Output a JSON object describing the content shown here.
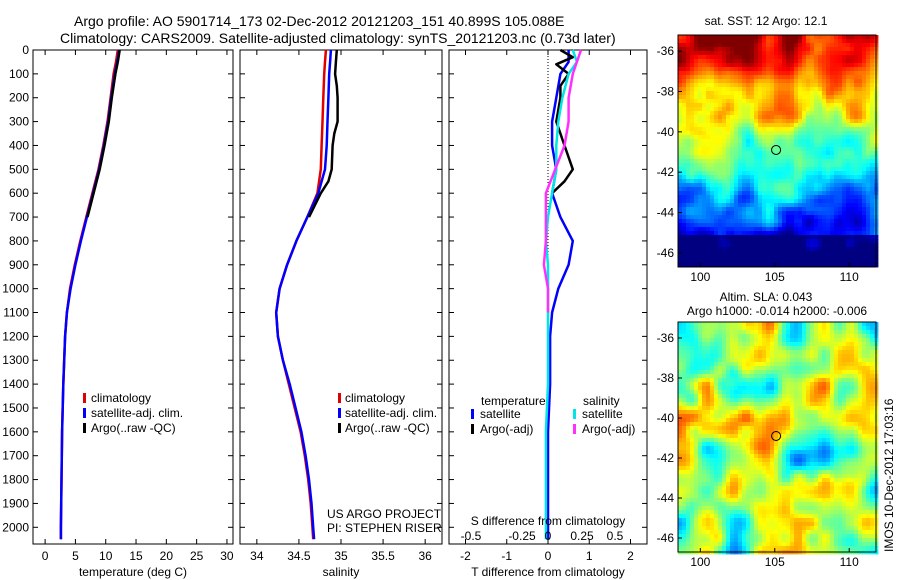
{
  "header": {
    "line1": "Argo profile: AO 5901714_173 02-Dec-2012 20121203_151 40.899S 105.088E",
    "line2": "Climatology: CARS2009. Satellite-adjusted climatology: synTS_20121203.nc (0.73d later)"
  },
  "colors": {
    "climatology": "#e00000",
    "satellite": "#0000ff",
    "argo": "#000000",
    "sat_salinity": "#00e5e5",
    "argo_salinity_adj": "#ff30ff"
  },
  "chart_data": [
    {
      "type": "line",
      "id": "temperature",
      "xlabel": "temperature (deg C)",
      "ylabel": "",
      "xlim": [
        -2,
        31
      ],
      "ylim": [
        2070,
        0
      ],
      "xticks": [
        "0",
        "5",
        "10",
        "15",
        "20",
        "25",
        "30"
      ],
      "yticks": [
        "0",
        "100",
        "200",
        "300",
        "400",
        "500",
        "600",
        "700",
        "800",
        "900",
        "1000",
        "1100",
        "1200",
        "1300",
        "1400",
        "1500",
        "1600",
        "1700",
        "1800",
        "1900",
        "2000"
      ],
      "legend": [
        "climatology",
        "satellite-adj. clim.",
        "Argo(..raw -QC)"
      ],
      "series": [
        {
          "name": "climatology",
          "depth": [
            0,
            50,
            100,
            200,
            300,
            400,
            500,
            600,
            700,
            800,
            900,
            1000,
            1100,
            1200,
            1400,
            1600,
            1800,
            2000,
            2050
          ],
          "values": [
            12.0,
            11.7,
            11.3,
            10.8,
            10.3,
            9.6,
            8.8,
            7.8,
            6.8,
            5.8,
            4.9,
            4.1,
            3.6,
            3.3,
            3.0,
            2.8,
            2.7,
            2.6,
            2.6
          ]
        },
        {
          "name": "satellite-adj. clim.",
          "depth": [
            0,
            50,
            100,
            200,
            300,
            400,
            500,
            600,
            700,
            800,
            900,
            1000,
            1100,
            1200,
            1400,
            1600,
            1800,
            2000,
            2050
          ],
          "values": [
            12.2,
            11.9,
            11.5,
            10.9,
            10.4,
            9.7,
            8.9,
            7.9,
            6.9,
            5.9,
            5.0,
            4.2,
            3.6,
            3.3,
            3.0,
            2.8,
            2.7,
            2.6,
            2.6
          ]
        },
        {
          "name": "Argo(..raw -QC)",
          "depth": [
            0,
            50,
            100,
            200,
            300,
            400,
            500,
            600,
            700
          ],
          "values": [
            12.3,
            12.0,
            11.6,
            11.0,
            10.5,
            9.8,
            9.0,
            8.0,
            7.0
          ]
        }
      ]
    },
    {
      "type": "line",
      "id": "salinity",
      "xlabel": "salinity",
      "xlim": [
        33.8,
        36.2
      ],
      "ylim": [
        2070,
        0
      ],
      "xticks": [
        "34",
        "34.5",
        "35",
        "35.5",
        "36"
      ],
      "legend": [
        "climatology",
        "satellite-adj. clim.",
        "Argo(..raw -QC)"
      ],
      "annotation": [
        "US ARGO PROJECT",
        "PI: STEPHEN RISER"
      ],
      "series": [
        {
          "name": "climatology",
          "depth": [
            0,
            50,
            100,
            200,
            300,
            400,
            500,
            600,
            700,
            800,
            900,
            1000,
            1100,
            1200,
            1300,
            1400,
            1500,
            1600,
            1700,
            1800,
            1900,
            2000,
            2050
          ],
          "values": [
            34.82,
            34.81,
            34.8,
            34.79,
            34.78,
            34.77,
            34.76,
            34.72,
            34.6,
            34.47,
            34.36,
            34.27,
            34.23,
            34.25,
            34.31,
            34.38,
            34.45,
            34.52,
            34.57,
            34.61,
            34.64,
            34.66,
            34.67
          ]
        },
        {
          "name": "satellite-adj. clim.",
          "depth": [
            0,
            50,
            100,
            200,
            300,
            400,
            500,
            600,
            700,
            800,
            900,
            1000,
            1100,
            1200,
            1300,
            1400,
            1500,
            1600,
            1700,
            1800,
            1900,
            2000,
            2050
          ],
          "values": [
            34.88,
            34.87,
            34.86,
            34.85,
            34.84,
            34.83,
            34.81,
            34.73,
            34.6,
            34.47,
            34.36,
            34.27,
            34.23,
            34.25,
            34.31,
            34.39,
            34.46,
            34.53,
            34.58,
            34.62,
            34.65,
            34.67,
            34.68
          ]
        },
        {
          "name": "Argo(..raw -QC)",
          "depth": [
            0,
            50,
            100,
            150,
            200,
            300,
            350,
            400,
            500,
            550,
            600,
            700
          ],
          "values": [
            34.95,
            34.94,
            34.93,
            34.95,
            34.96,
            34.96,
            34.92,
            34.9,
            34.89,
            34.85,
            34.76,
            34.62
          ]
        }
      ]
    },
    {
      "type": "line",
      "id": "difference",
      "xlabel": "T difference from climatology",
      "xlabel_top": "S difference from climatology",
      "xlim": [
        -2.4,
        2.4
      ],
      "ylim": [
        2070,
        0
      ],
      "xticks": [
        "-2",
        "-1",
        "0",
        "1",
        "2"
      ],
      "top_ticks": [
        "-0.5",
        "-0.25",
        "0",
        "0.25",
        "0.5"
      ],
      "legend_temperature_title": "temperature",
      "legend_salinity_title": "salinity",
      "legend_temperature": [
        "satellite",
        "Argo(-adj)"
      ],
      "legend_salinity": [
        "satellite",
        "Argo(-adj)"
      ],
      "series": [
        {
          "name": "temperature satellite",
          "depth": [
            0,
            50,
            100,
            200,
            300,
            400,
            500,
            600,
            700,
            800,
            900,
            1000,
            1100,
            1200,
            1400,
            1600,
            1800,
            2000,
            2050
          ],
          "values": [
            0.5,
            0.5,
            0.3,
            0.2,
            0.1,
            0.1,
            0.2,
            0.1,
            0.3,
            0.6,
            0.5,
            0.25,
            0.1,
            0.05,
            0.05,
            0.0,
            0.0,
            0.0,
            0.0
          ]
        },
        {
          "name": "temperature Argo(-adj)",
          "depth": [
            0,
            30,
            60,
            100,
            150,
            200,
            300,
            400,
            500,
            550,
            600
          ],
          "values": [
            0.3,
            0.6,
            0.2,
            0.5,
            0.3,
            0.3,
            0.2,
            0.4,
            0.6,
            0.4,
            0.1
          ]
        },
        {
          "name": "salinity satellite",
          "depth": [
            0,
            50,
            100,
            200,
            300,
            400,
            500,
            600,
            700,
            800,
            900,
            1000,
            1100,
            1200,
            1400,
            1600,
            1800,
            2000,
            2050
          ],
          "values": [
            0.6,
            0.7,
            0.5,
            0.35,
            0.25,
            0.2,
            0.2,
            0.1,
            0.0,
            -0.05,
            0.0,
            0.0,
            0.0,
            0.0,
            0.0,
            -0.05,
            -0.05,
            -0.05,
            -0.05
          ]
        },
        {
          "name": "salinity Argo(-adj)",
          "depth": [
            0,
            50,
            100,
            200,
            300,
            400,
            600,
            700,
            800,
            900,
            1000,
            1100
          ],
          "values": [
            0.8,
            0.7,
            0.6,
            0.5,
            0.5,
            0.4,
            -0.05,
            -0.05,
            -0.05,
            -0.1,
            0.0,
            0.0
          ]
        }
      ]
    },
    {
      "type": "heatmap",
      "id": "sst-map",
      "title": "sat. SST: 12 Argo: 12.1",
      "xlim": [
        98.5,
        111.8
      ],
      "ylim": [
        -46.7,
        -35.2
      ],
      "xticks": [
        "100",
        "105",
        "110"
      ],
      "yticks": [
        "-36",
        "-38",
        "-40",
        "-42",
        "-44",
        "-46"
      ],
      "marker": {
        "lon": 105.088,
        "lat": -40.899
      }
    },
    {
      "type": "heatmap",
      "id": "sla-map",
      "title1": "Altim. SLA: 0.043",
      "title2": "Argo h1000: -0.014 h2000: -0.006",
      "xlim": [
        98.5,
        111.8
      ],
      "ylim": [
        -46.7,
        -35.2
      ],
      "xticks": [
        "100",
        "105",
        "110"
      ],
      "yticks": [
        "-36",
        "-38",
        "-40",
        "-42",
        "-44",
        "-46"
      ],
      "marker": {
        "lon": 105.088,
        "lat": -40.899
      }
    }
  ],
  "side_label": "IMOS 10-Dec-2012 17:03:16"
}
